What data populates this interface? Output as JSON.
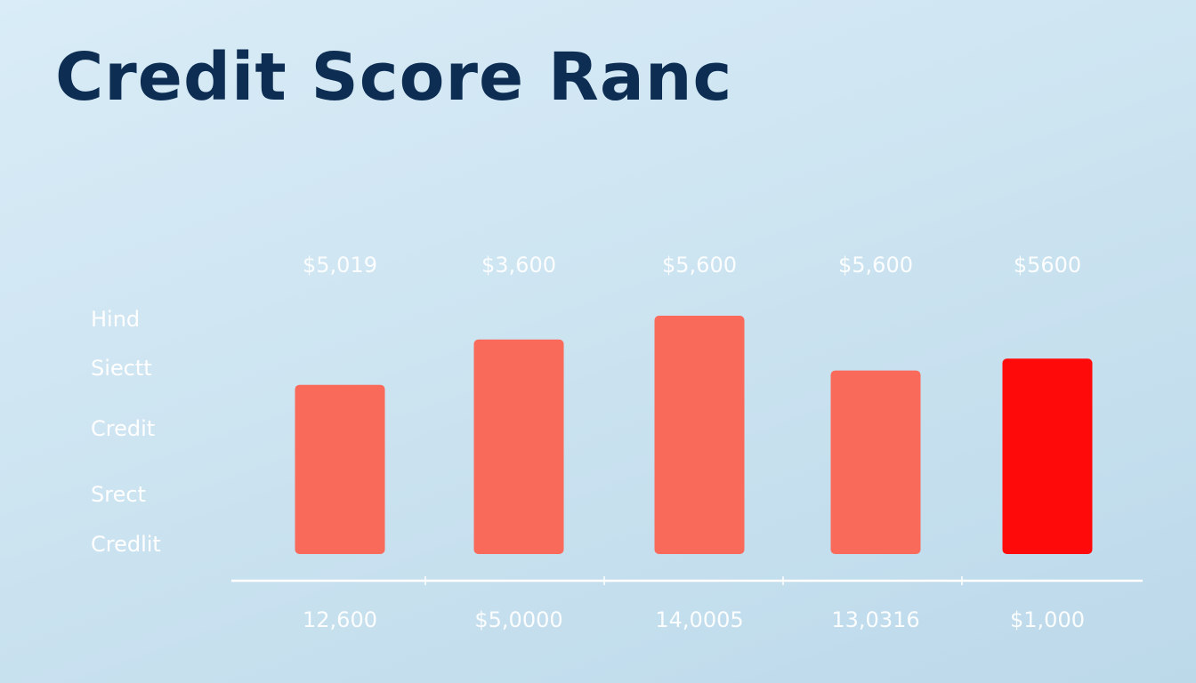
{
  "chart_data": {
    "type": "bar",
    "title": "Credit Score Ranc",
    "row_labels": [
      "Hind",
      "Siectt",
      "Credit",
      "Srect",
      "Credlit"
    ],
    "top_labels": [
      "$5,019",
      "$3,600",
      "$5,600",
      "$5,600",
      "$5600"
    ],
    "categories": [
      "12,600",
      "$5,0000",
      "14,0005",
      "13,0316",
      "$1,000"
    ],
    "values": [
      71,
      90,
      100,
      77,
      82
    ],
    "value_units": "percent of tallest bar (no axis scale printed)",
    "ylim": [
      0,
      100
    ],
    "grid": false,
    "colors": {
      "bar": "#f96a5a",
      "highlight_bar": "#ff0a0a",
      "title": "#0d2d52",
      "axis": "#ffffff"
    },
    "highlight_index": 4
  }
}
